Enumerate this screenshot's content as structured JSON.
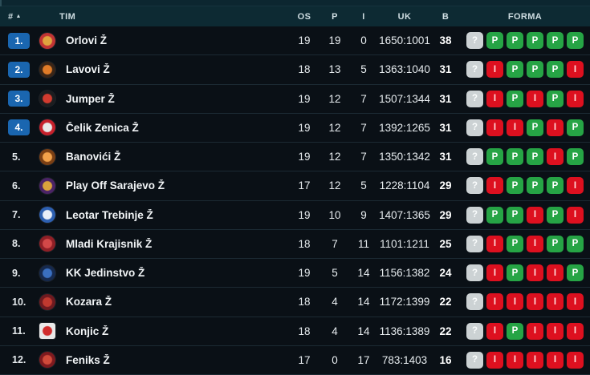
{
  "colors": {
    "header_bg": "#0d2a33",
    "row_bg": "#0a1016",
    "divider": "#1c2a33",
    "rank_badge_blue": "#1a66b0",
    "forma_win_green": "#26a445",
    "forma_loss_red": "#dd101f",
    "forma_unknown_gray": "#ccd2d4"
  },
  "table": {
    "columns": {
      "rank": "#",
      "team": "TIM",
      "os": "OS",
      "p": "P",
      "i": "I",
      "uk": "UK",
      "b": "B",
      "forma": "FORMA"
    },
    "sort_icon": "▲",
    "forma_legend": {
      "unknown": "?",
      "win": "P",
      "loss": "I"
    },
    "rows": [
      {
        "rank": "1.",
        "highlight": true,
        "team": "Orlovi Ž",
        "os": "19",
        "p": "19",
        "i": "0",
        "uk": "1650:1001",
        "b": "38",
        "forma": [
          "?",
          "P",
          "P",
          "P",
          "P",
          "P"
        ],
        "logo": {
          "c1": "#c13434",
          "c2": "#e0a43e",
          "shape": "circle"
        }
      },
      {
        "rank": "2.",
        "highlight": true,
        "team": "Lavovi Ž",
        "os": "18",
        "p": "13",
        "i": "5",
        "uk": "1363:1040",
        "b": "31",
        "forma": [
          "?",
          "I",
          "P",
          "P",
          "P",
          "I"
        ],
        "logo": {
          "c1": "#3a2517",
          "c2": "#e07b28",
          "shape": "circle"
        }
      },
      {
        "rank": "3.",
        "highlight": true,
        "team": "Jumper Ž",
        "os": "19",
        "p": "12",
        "i": "7",
        "uk": "1507:1344",
        "b": "31",
        "forma": [
          "?",
          "I",
          "P",
          "I",
          "P",
          "I"
        ],
        "logo": {
          "c1": "#1d1d1f",
          "c2": "#d23b2f",
          "shape": "circle"
        }
      },
      {
        "rank": "4.",
        "highlight": true,
        "team": "Čelik Zenica Ž",
        "os": "19",
        "p": "12",
        "i": "7",
        "uk": "1392:1265",
        "b": "31",
        "forma": [
          "?",
          "I",
          "I",
          "P",
          "I",
          "P"
        ],
        "logo": {
          "c1": "#c6202b",
          "c2": "#e8e8e8",
          "shape": "circle"
        }
      },
      {
        "rank": "5.",
        "highlight": false,
        "team": "Banovići Ž",
        "os": "19",
        "p": "12",
        "i": "7",
        "uk": "1350:1342",
        "b": "31",
        "forma": [
          "?",
          "P",
          "P",
          "P",
          "I",
          "P"
        ],
        "logo": {
          "c1": "#7a3f14",
          "c2": "#f2a24b",
          "shape": "circle"
        }
      },
      {
        "rank": "6.",
        "highlight": false,
        "team": "Play Off Sarajevo Ž",
        "os": "17",
        "p": "12",
        "i": "5",
        "uk": "1228:1104",
        "b": "29",
        "forma": [
          "?",
          "I",
          "P",
          "P",
          "P",
          "I"
        ],
        "logo": {
          "c1": "#4b2366",
          "c2": "#d9a33c",
          "shape": "circle"
        }
      },
      {
        "rank": "7.",
        "highlight": false,
        "team": "Leotar Trebinje Ž",
        "os": "19",
        "p": "10",
        "i": "9",
        "uk": "1407:1365",
        "b": "29",
        "forma": [
          "?",
          "P",
          "P",
          "I",
          "P",
          "I"
        ],
        "logo": {
          "c1": "#2d5fb0",
          "c2": "#e8eef8",
          "shape": "circle"
        }
      },
      {
        "rank": "8.",
        "highlight": false,
        "team": "Mladi Krajisnik Ž",
        "os": "18",
        "p": "7",
        "i": "11",
        "uk": "1101:1211",
        "b": "25",
        "forma": [
          "?",
          "I",
          "P",
          "I",
          "P",
          "P"
        ],
        "logo": {
          "c1": "#8f1f26",
          "c2": "#d24848",
          "shape": "circle"
        }
      },
      {
        "rank": "9.",
        "highlight": false,
        "team": "KK Jedinstvo Ž",
        "os": "19",
        "p": "5",
        "i": "14",
        "uk": "1156:1382",
        "b": "24",
        "forma": [
          "?",
          "I",
          "P",
          "I",
          "I",
          "P"
        ],
        "logo": {
          "c1": "#16294d",
          "c2": "#3a6fc0",
          "shape": "circle"
        }
      },
      {
        "rank": "10.",
        "highlight": false,
        "team": "Kozara Ž",
        "os": "18",
        "p": "4",
        "i": "14",
        "uk": "1172:1399",
        "b": "22",
        "forma": [
          "?",
          "I",
          "I",
          "I",
          "I",
          "I"
        ],
        "logo": {
          "c1": "#6e1a20",
          "c2": "#c0392f",
          "shape": "circle"
        }
      },
      {
        "rank": "11.",
        "highlight": false,
        "team": "Konjic Ž",
        "os": "18",
        "p": "4",
        "i": "14",
        "uk": "1136:1389",
        "b": "22",
        "forma": [
          "?",
          "I",
          "P",
          "I",
          "I",
          "I"
        ],
        "logo": {
          "c1": "#e9e9e9",
          "c2": "#d12c2c",
          "shape": "square"
        }
      },
      {
        "rank": "12.",
        "highlight": false,
        "team": "Feniks Ž",
        "os": "17",
        "p": "0",
        "i": "17",
        "uk": "783:1403",
        "b": "16",
        "forma": [
          "?",
          "I",
          "I",
          "I",
          "I",
          "I"
        ],
        "logo": {
          "c1": "#7e1a1f",
          "c2": "#d04a3a",
          "shape": "circle"
        }
      }
    ]
  }
}
